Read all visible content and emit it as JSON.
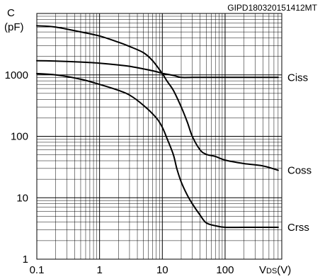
{
  "chart_data": {
    "type": "line",
    "title": "GIPD180320151412MT",
    "xlabel": {
      "main": "V",
      "sub": "DS",
      "unit": "(V)"
    },
    "ylabel": {
      "line1": "C",
      "line2": "(pF)"
    },
    "x_scale": "log",
    "y_scale": "log",
    "xlim": [
      0.1,
      800
    ],
    "ylim": [
      1,
      10000
    ],
    "x_ticks": [
      {
        "value": 0.1,
        "label": "0.1"
      },
      {
        "value": 1,
        "label": "1"
      },
      {
        "value": 10,
        "label": "10"
      },
      {
        "value": 100,
        "label": "100"
      }
    ],
    "y_ticks": [
      {
        "value": 1,
        "label": "1"
      },
      {
        "value": 10,
        "label": "10"
      },
      {
        "value": 100,
        "label": "100"
      },
      {
        "value": 1000,
        "label": "1000"
      }
    ],
    "grid": true,
    "series": [
      {
        "name": "Ciss",
        "x": [
          0.1,
          0.2,
          0.5,
          1,
          2,
          3,
          5,
          8,
          10,
          15,
          20,
          30,
          50,
          100,
          200,
          500,
          700
        ],
        "y": [
          1700,
          1680,
          1620,
          1550,
          1450,
          1380,
          1250,
          1130,
          1060,
          980,
          910,
          910,
          910,
          910,
          910,
          910,
          910
        ]
      },
      {
        "name": "Coss",
        "x": [
          0.1,
          0.2,
          0.5,
          1,
          2,
          3,
          5,
          7,
          10,
          12,
          15,
          20,
          25,
          30,
          40,
          50,
          70,
          100,
          200,
          400,
          700
        ],
        "y": [
          6300,
          6000,
          5000,
          4300,
          3400,
          2900,
          2300,
          1700,
          1050,
          780,
          560,
          300,
          170,
          100,
          60,
          51,
          47,
          41,
          36,
          33,
          28
        ]
      },
      {
        "name": "Crss",
        "x": [
          0.1,
          0.2,
          0.5,
          1,
          2,
          3,
          5,
          8,
          10,
          12,
          15,
          17,
          20,
          25,
          30,
          40,
          50,
          70,
          100,
          200,
          400,
          700
        ],
        "y": [
          1050,
          1000,
          850,
          700,
          560,
          470,
          320,
          200,
          140,
          90,
          50,
          30,
          18,
          11,
          8,
          5.2,
          3.9,
          3.5,
          3.3,
          3.3,
          3.3,
          3.3
        ]
      }
    ]
  }
}
